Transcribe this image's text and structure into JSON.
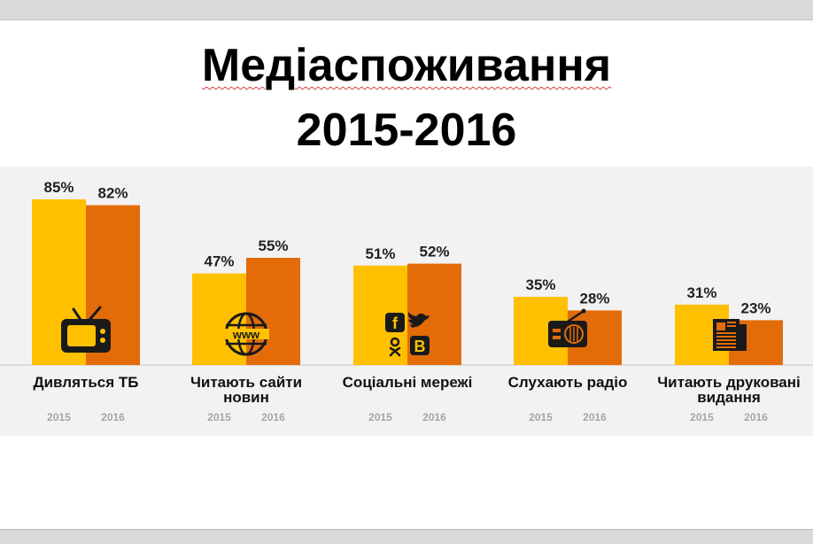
{
  "title_line1": "Медіаспоживання",
  "title_line2": "2015-2016",
  "colors": {
    "y2015": "#FFC000",
    "y2016": "#E36C09",
    "icon": "#1a1a1a",
    "panel": "#F2F2F2"
  },
  "chart_data": {
    "type": "bar",
    "series": [
      {
        "name": "2015",
        "values": [
          85,
          47,
          51,
          35,
          31
        ]
      },
      {
        "name": "2016",
        "values": [
          82,
          55,
          52,
          28,
          23
        ]
      }
    ],
    "categories": [
      {
        "label": [
          "Дивляться ТБ"
        ],
        "icon": "tv-icon"
      },
      {
        "label": [
          "Читають сайти",
          "новин"
        ],
        "icon": "www-globe-icon"
      },
      {
        "label": [
          "Соціальні мережі"
        ],
        "icon": "social-networks-icon"
      },
      {
        "label": [
          "Слухають радіо"
        ],
        "icon": "radio-icon"
      },
      {
        "label": [
          "Читають друковані",
          "видання"
        ],
        "icon": "newspaper-icon"
      }
    ],
    "value_suffix": "%",
    "ylim": [
      0,
      100
    ],
    "grid": false,
    "legend": "none",
    "year_labels": [
      "2015",
      "2016"
    ]
  }
}
